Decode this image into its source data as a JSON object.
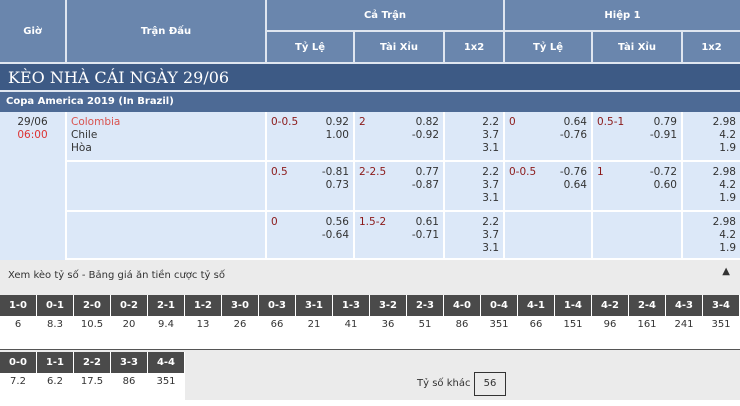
{
  "header": {
    "time": "Giờ",
    "match": "Trận Đấu",
    "full": "Cả Trận",
    "half": "Hiệp 1",
    "cols": [
      "Tỷ Lệ",
      "Tài Xỉu",
      "1x2",
      "Tỷ Lệ",
      "Tài Xỉu",
      "1x2"
    ]
  },
  "title": "KÈO NHÀ CÁI NGÀY 29/06",
  "league": "Copa America 2019 (In Brazil)",
  "match": {
    "date": "29/06",
    "time": "06:00",
    "home": "Colombia",
    "away": "Chile",
    "draw": "Hòa"
  },
  "rows": [
    {
      "hcp": "0-0.5",
      "hcp_o": [
        "0.92",
        "1.00"
      ],
      "ou": "2",
      "ou_o": [
        "0.82",
        "-0.92"
      ],
      "x12": [
        "2.2",
        "3.7",
        "3.1"
      ],
      "h_hcp": "0",
      "h_hcp_o": [
        "0.64",
        "-0.76"
      ],
      "h_ou": "0.5-1",
      "h_ou_o": [
        "0.79",
        "-0.91"
      ],
      "h_x12": [
        "2.98",
        "4.2",
        "1.9"
      ]
    },
    {
      "hcp": "0.5",
      "hcp_o": [
        "-0.81",
        "0.73"
      ],
      "ou": "2-2.5",
      "ou_o": [
        "0.77",
        "-0.87"
      ],
      "x12": [
        "2.2",
        "3.7",
        "3.1"
      ],
      "h_hcp": "0-0.5",
      "h_hcp_o": [
        "-0.76",
        "0.64"
      ],
      "h_ou": "1",
      "h_ou_o": [
        "-0.72",
        "0.60"
      ],
      "h_x12": [
        "2.98",
        "4.2",
        "1.9"
      ]
    },
    {
      "hcp": "0",
      "hcp_o": [
        "0.56",
        "-0.64"
      ],
      "ou": "1.5-2",
      "ou_o": [
        "0.61",
        "-0.71"
      ],
      "x12": [
        "2.2",
        "3.7",
        "3.1"
      ],
      "h_hcp": "",
      "h_hcp_o": [
        "",
        ""
      ],
      "h_ou": "",
      "h_ou_o": [
        "",
        ""
      ],
      "h_x12": [
        "2.98",
        "4.2",
        "1.9"
      ]
    }
  ],
  "scores": {
    "title": "Xem kèo tỷ số - Bảng giá ăn tiền cược tỷ số",
    "collapse_icon": "triangle-up",
    "row1": [
      [
        "1-0",
        "6"
      ],
      [
        "0-1",
        "8.3"
      ],
      [
        "2-0",
        "10.5"
      ],
      [
        "0-2",
        "20"
      ],
      [
        "2-1",
        "9.4"
      ],
      [
        "1-2",
        "13"
      ],
      [
        "3-0",
        "26"
      ],
      [
        "0-3",
        "66"
      ],
      [
        "3-1",
        "21"
      ],
      [
        "1-3",
        "41"
      ],
      [
        "3-2",
        "36"
      ],
      [
        "2-3",
        "51"
      ],
      [
        "4-0",
        "86"
      ],
      [
        "0-4",
        "351"
      ],
      [
        "4-1",
        "66"
      ],
      [
        "1-4",
        "151"
      ],
      [
        "4-2",
        "96"
      ],
      [
        "2-4",
        "161"
      ],
      [
        "4-3",
        "241"
      ],
      [
        "3-4",
        "351"
      ]
    ],
    "row2": [
      [
        "0-0",
        "7.2"
      ],
      [
        "1-1",
        "6.2"
      ],
      [
        "2-2",
        "17.5"
      ],
      [
        "3-3",
        "86"
      ],
      [
        "4-4",
        "351"
      ]
    ],
    "other_label": "Tỷ số khác",
    "other_value": "56"
  }
}
